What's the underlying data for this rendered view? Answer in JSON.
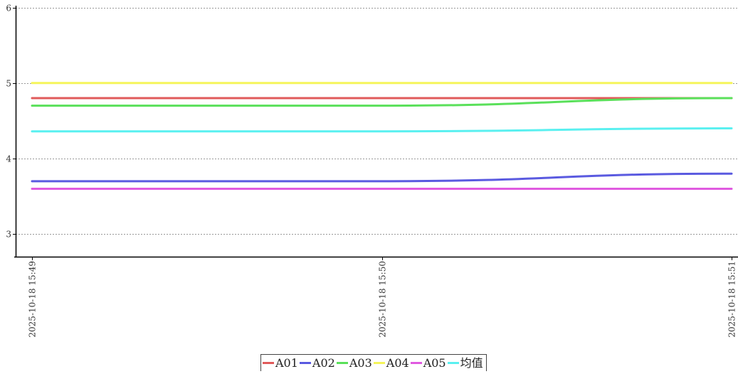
{
  "colors": {
    "axis": "#000000",
    "grid": "#999999",
    "tick_text": "#333333"
  },
  "chart_data": {
    "type": "line",
    "title": "",
    "xlabel": "",
    "ylabel": "",
    "x": [
      "2025-10-18 15:49",
      "2025-10-18 15:50",
      "2025-10-18 15:51"
    ],
    "ylim": [
      2.7,
      6.1
    ],
    "yticks": [
      3,
      4,
      5,
      6
    ],
    "grid": true,
    "legend_position": "bottom-center",
    "series": [
      {
        "name": "A01",
        "color": "#e05a5a",
        "values": [
          4.8,
          4.8,
          4.8
        ]
      },
      {
        "name": "A02",
        "color": "#5a5ae0",
        "values": [
          3.7,
          3.7,
          3.8
        ]
      },
      {
        "name": "A03",
        "color": "#5ae05a",
        "values": [
          4.7,
          4.7,
          4.8
        ]
      },
      {
        "name": "A04",
        "color": "#f5f55a",
        "values": [
          5.0,
          5.0,
          5.0
        ]
      },
      {
        "name": "A05",
        "color": "#e05ae0",
        "values": [
          3.6,
          3.6,
          3.6
        ]
      },
      {
        "name": "均值",
        "color": "#5af0f0",
        "values": [
          4.36,
          4.36,
          4.4
        ]
      }
    ]
  }
}
